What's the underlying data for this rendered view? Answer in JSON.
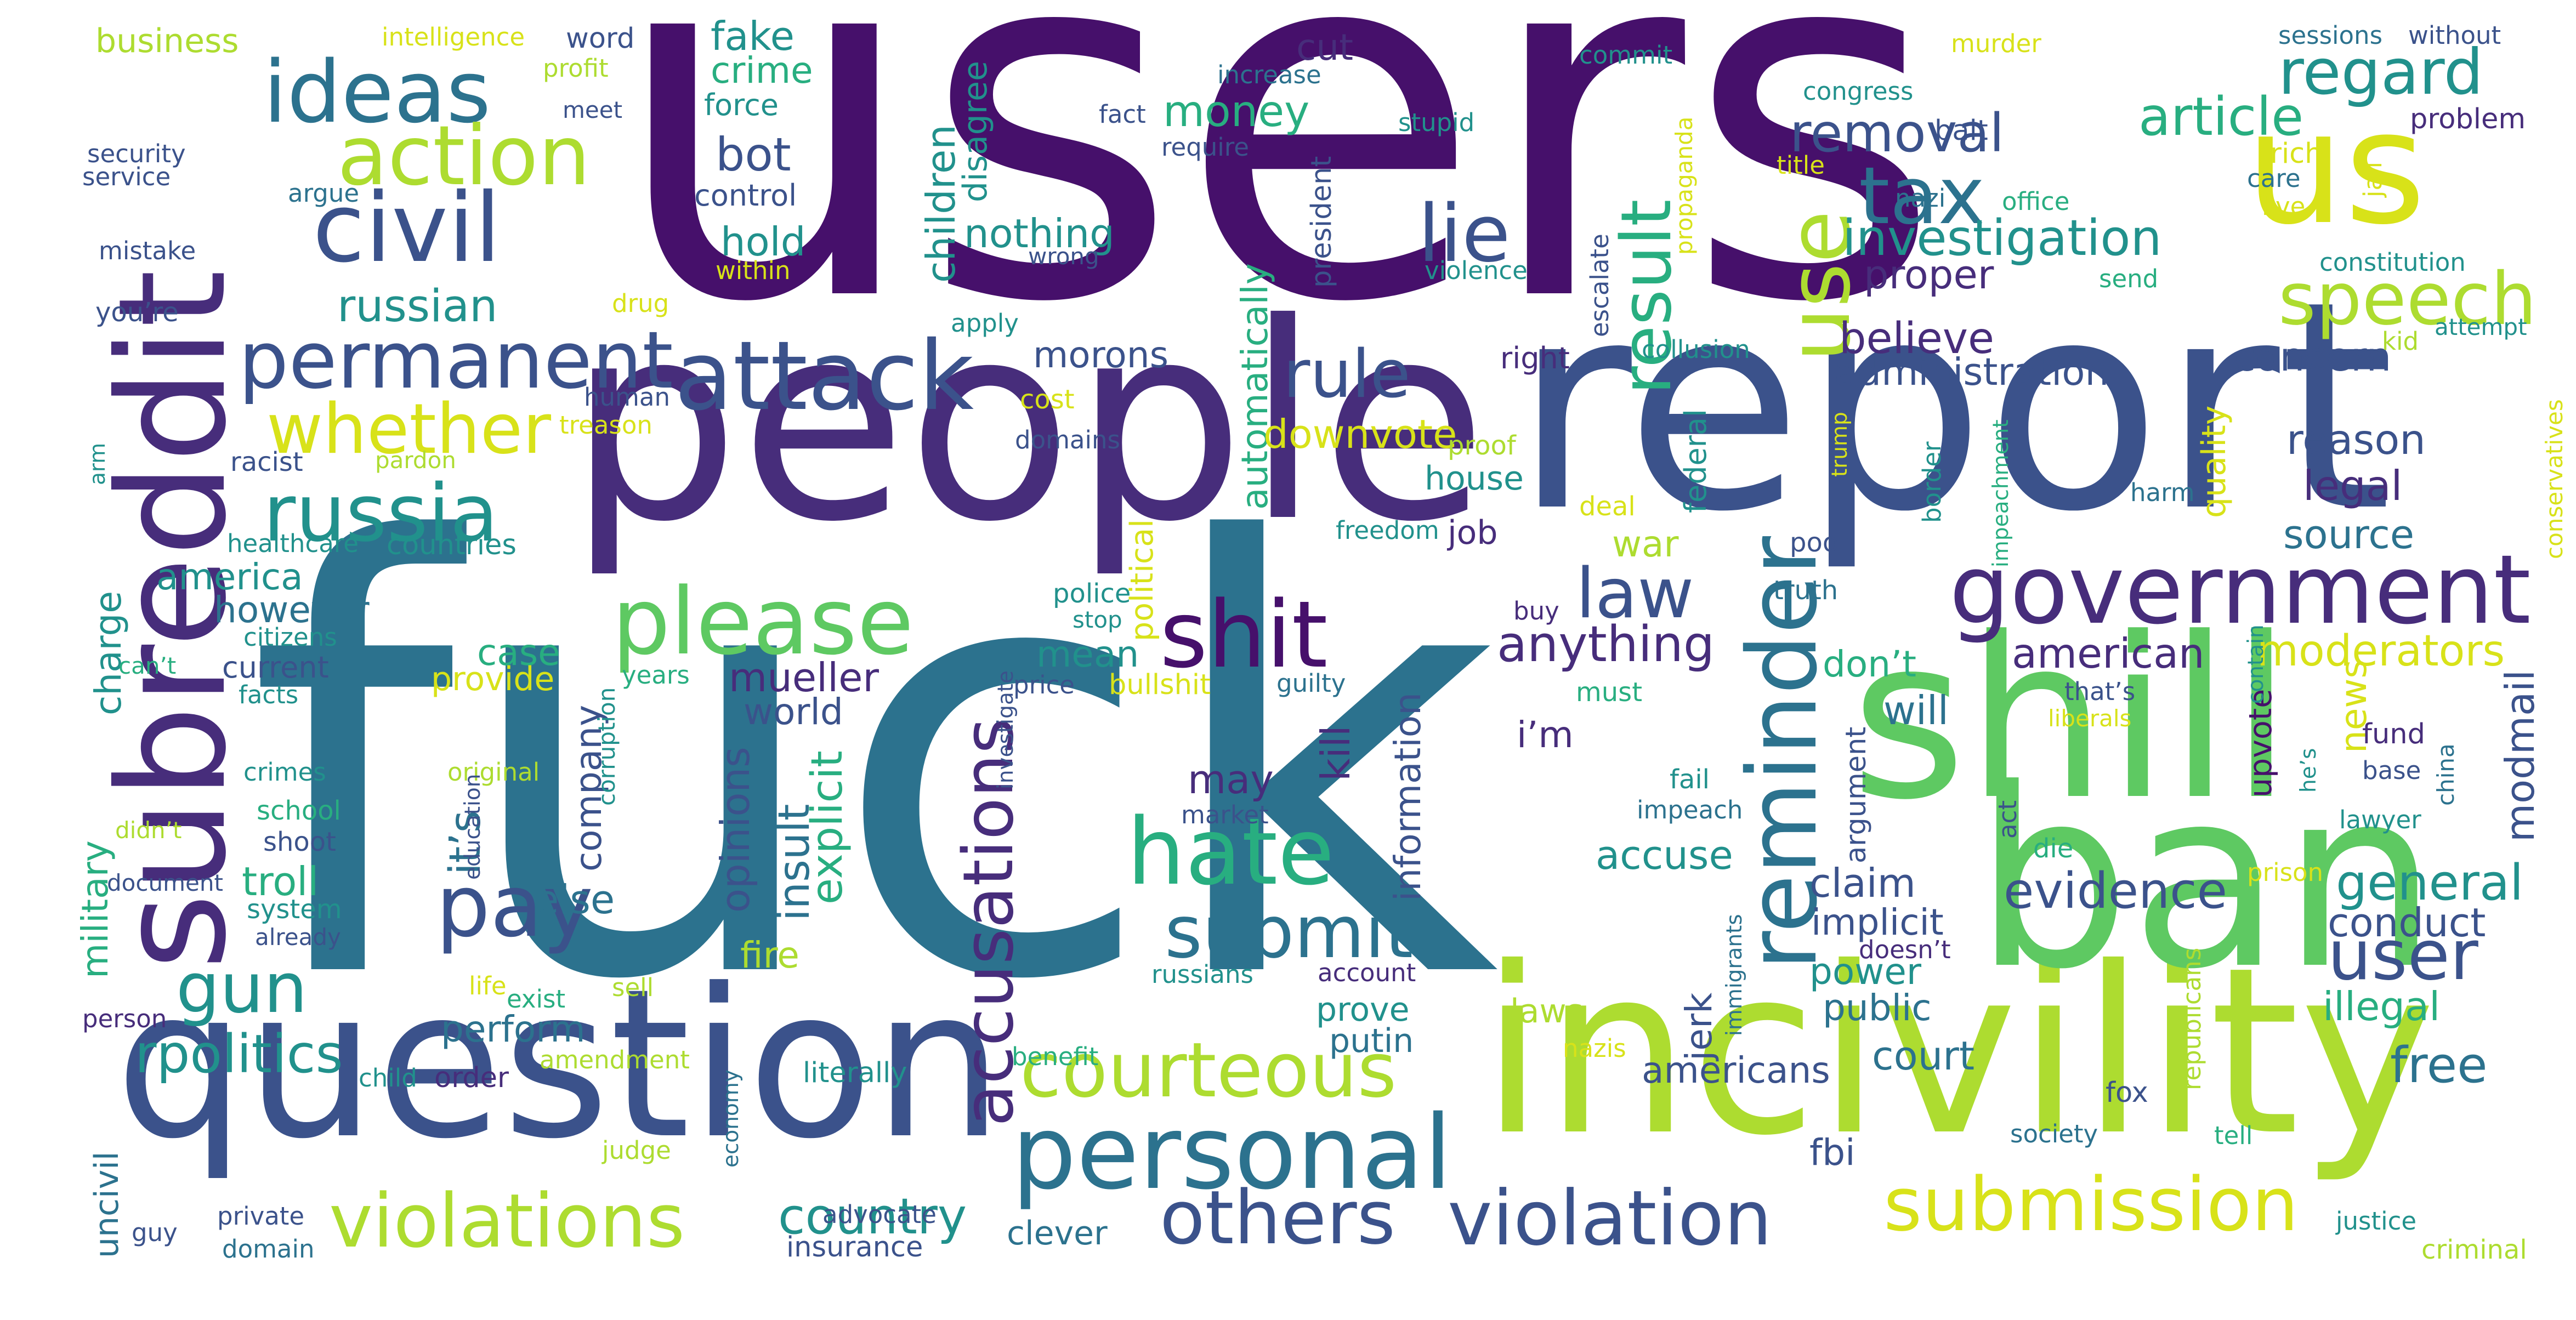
{
  "palette": {
    "c1": "#46106b",
    "c2": "#472d7b",
    "c3": "#3b528b",
    "c4": "#2c728e",
    "c5": "#21918c",
    "c6": "#28ae80",
    "c7": "#5ec962",
    "c8": "#addc30",
    "c9": "#d8e219"
  },
  "words": [
    "users",
    "fuck",
    "people",
    "report",
    "question",
    "incivility",
    "ban",
    "shill",
    "subreddit",
    "us",
    "government",
    "personal",
    "courteous",
    "submission",
    "violation",
    "violations",
    "others",
    "please",
    "hate",
    "reminder",
    "shit",
    "pay",
    "attack",
    "ideas",
    "civil",
    "permanent",
    "russia",
    "action",
    "whether",
    "tax",
    "lie",
    "speech",
    "accusations",
    "result",
    "use",
    "regard",
    "article",
    "removal",
    "investigation",
    "submit",
    "user",
    "rpolitics",
    "gun",
    "law",
    "rule",
    "evidence",
    "general",
    "free",
    "country",
    "anything",
    "russian",
    "money",
    "crime",
    "fake",
    "bot",
    "hold",
    "proper",
    "believe",
    "administration",
    "reason",
    "legal",
    "source",
    "concern",
    "moderators",
    "news",
    "modmail",
    "conduct",
    "illegal",
    "american",
    "don’t",
    "will",
    "claim",
    "implicit",
    "power",
    "public",
    "court",
    "americans",
    "fbi",
    "jerk",
    "accuse",
    "i’m",
    "may",
    "mean",
    "kill",
    "information",
    "automatically",
    "downvote",
    "cut",
    "nothing",
    "children",
    "disagree",
    "morons",
    "it’s",
    "insult",
    "explicit",
    "opinions",
    "company",
    "else",
    "mueller",
    "world",
    "case",
    "provide",
    "current",
    "however",
    "america",
    "charge",
    "military",
    "uncivil",
    "troll",
    "system",
    "already",
    "perform",
    "order",
    "fire",
    "laws",
    "putin",
    "prove",
    "clever",
    "insurance",
    "advocate",
    "literally",
    "economy",
    "political",
    "quality",
    "war",
    "job",
    "house",
    "proof",
    "federal",
    "deal",
    "poor",
    "truth",
    "police",
    "stop",
    "price",
    "bullshit",
    "guilty",
    "must",
    "fail",
    "impeach",
    "market",
    "argument",
    "that’s",
    "liberals",
    "upvote",
    "fund",
    "base",
    "lawyer",
    "die",
    "act",
    "china",
    "he’s",
    "republicans",
    "fox",
    "tell",
    "society",
    "justice",
    "criminal",
    "business",
    "intelligence",
    "word",
    "profit",
    "meet",
    "force",
    "control",
    "within",
    "wrong",
    "security",
    "service",
    "argue",
    "mistake",
    "you’re",
    "drug",
    "apply",
    "increase",
    "require",
    "fact",
    "stupid",
    "commit",
    "congress",
    "bait",
    "murder",
    "sessions",
    "without",
    "problem",
    "rich",
    "jail",
    "care",
    "live",
    "office",
    "nazi",
    "title",
    "constitution",
    "send",
    "kid",
    "attempt",
    "collusion",
    "escalate",
    "propaganda",
    "trump",
    "border",
    "impeachment",
    "conservatives",
    "harm",
    "right",
    "violence",
    "president",
    "human",
    "treason",
    "racist",
    "pardon",
    "arm",
    "healthcare",
    "countries",
    "citizens",
    "can’t",
    "facts",
    "years",
    "crimes",
    "original",
    "school",
    "shoot",
    "didn’t",
    "document",
    "corruption",
    "education",
    "investigate",
    "domains",
    "cost",
    "freedom",
    "account",
    "russians",
    "sell",
    "nazis",
    "immigrants",
    "doesn’t",
    "prison",
    "contain",
    "benefit",
    "amendment",
    "child",
    "life",
    "exist",
    "person",
    "private",
    "domain",
    "guy",
    "judge",
    "buy"
  ]
}
